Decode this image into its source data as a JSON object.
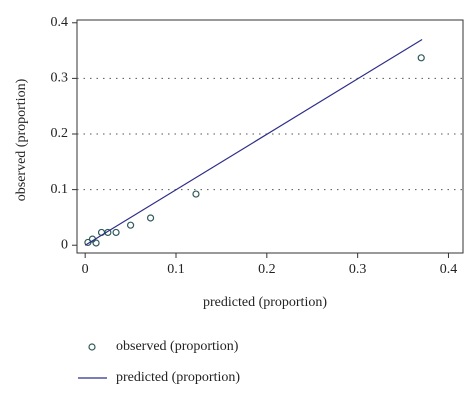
{
  "chart_data": {
    "type": "scatter",
    "x_label": "predicted (proportion)",
    "y_label": "observed (proportion)",
    "xlim": [
      -0.009,
      0.416
    ],
    "ylim": [
      -0.014,
      0.405
    ],
    "xticks": [
      0,
      0.1,
      0.2,
      0.3,
      0.4
    ],
    "yticks": [
      0,
      0.1,
      0.2,
      0.3,
      0.4
    ],
    "grid": true,
    "series": [
      {
        "name": "observed (proportion)",
        "type": "scatter",
        "color": "#2f5a5a",
        "x": [
          0.003,
          0.008,
          0.012,
          0.018,
          0.025,
          0.034,
          0.05,
          0.072,
          0.122,
          0.37
        ],
        "values": [
          0.005,
          0.011,
          0.004,
          0.023,
          0.023,
          0.023,
          0.036,
          0.049,
          0.092,
          0.337
        ]
      },
      {
        "name": "predicted (proportion)",
        "type": "line",
        "color": "#2e2e8a",
        "x": [
          0,
          0.371
        ],
        "values": [
          0,
          0.37
        ]
      }
    ]
  }
}
